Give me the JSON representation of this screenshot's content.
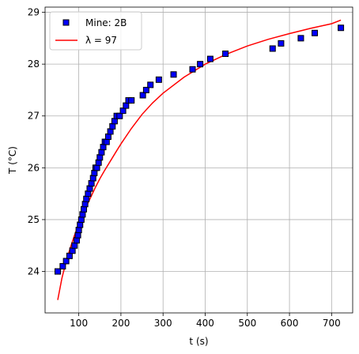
{
  "chart_data": {
    "type": "scatter",
    "xlabel": "t (s)",
    "ylabel": "T (°C)",
    "xlim": [
      20,
      750
    ],
    "ylim": [
      23.2,
      29.1
    ],
    "xticks": [
      100,
      200,
      300,
      400,
      500,
      600,
      700
    ],
    "yticks": [
      24,
      25,
      26,
      27,
      28,
      29
    ],
    "grid": true,
    "legend_position": "top-left",
    "series": [
      {
        "name": "Mine: 2B",
        "kind": "markers",
        "marker": "square",
        "face_color": "#0000ff",
        "edge_color": "#000000",
        "x": [
          50,
          62,
          70,
          78,
          85,
          90,
          95,
          98,
          100,
          103,
          106,
          109,
          112,
          115,
          118,
          122,
          126,
          130,
          134,
          137,
          140,
          143,
          147,
          150,
          154,
          158,
          162,
          166,
          170,
          175,
          180,
          185,
          190,
          197,
          205,
          212,
          218,
          225,
          252,
          260,
          270,
          290,
          325,
          370,
          388,
          412,
          448,
          560,
          580,
          627,
          660,
          722
        ],
        "y": [
          24.0,
          24.1,
          24.2,
          24.3,
          24.4,
          24.5,
          24.6,
          24.7,
          24.8,
          24.9,
          25.0,
          25.1,
          25.2,
          25.3,
          25.4,
          25.5,
          25.6,
          25.7,
          25.8,
          25.9,
          26.0,
          26.0,
          26.1,
          26.2,
          26.3,
          26.4,
          26.5,
          26.5,
          26.6,
          26.7,
          26.8,
          26.9,
          27.0,
          27.0,
          27.1,
          27.2,
          27.3,
          27.3,
          27.4,
          27.5,
          27.6,
          27.7,
          27.8,
          27.9,
          28.0,
          28.1,
          28.2,
          28.3,
          28.4,
          28.5,
          28.6,
          28.7
        ]
      },
      {
        "name": "λ = 97",
        "kind": "line",
        "color": "#ff0000",
        "x": [
          50,
          60,
          70,
          80,
          90,
          100,
          110,
          120,
          130,
          140,
          150,
          160,
          175,
          190,
          200,
          225,
          250,
          275,
          300,
          350,
          400,
          450,
          500,
          550,
          600,
          650,
          700,
          722
        ],
        "y": [
          23.45,
          23.87,
          24.19,
          24.46,
          24.7,
          24.92,
          25.1,
          25.29,
          25.46,
          25.63,
          25.79,
          25.93,
          26.13,
          26.33,
          26.46,
          26.76,
          27.03,
          27.25,
          27.44,
          27.75,
          28.0,
          28.19,
          28.35,
          28.48,
          28.59,
          28.69,
          28.78,
          28.85
        ]
      }
    ]
  }
}
